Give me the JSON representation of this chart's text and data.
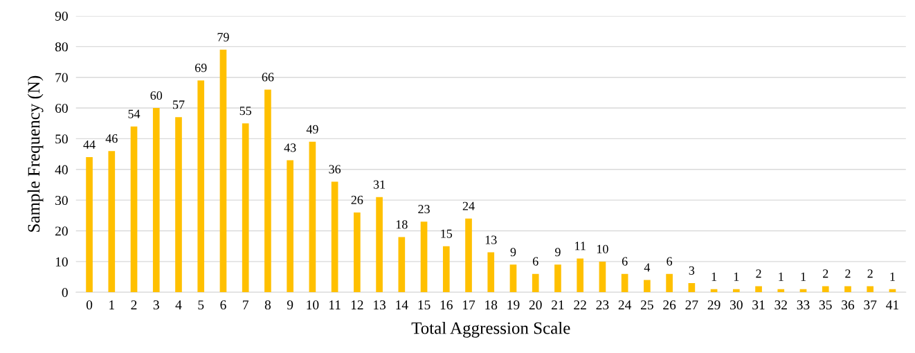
{
  "chart_data": {
    "type": "bar",
    "xlabel": "Total Aggression Scale",
    "ylabel": "Sample Frequency (N)",
    "categories": [
      "0",
      "1",
      "2",
      "3",
      "4",
      "5",
      "6",
      "7",
      "8",
      "9",
      "10",
      "11",
      "12",
      "13",
      "14",
      "15",
      "16",
      "17",
      "18",
      "19",
      "20",
      "21",
      "22",
      "23",
      "24",
      "25",
      "26",
      "27",
      "29",
      "30",
      "31",
      "32",
      "33",
      "35",
      "36",
      "37",
      "41"
    ],
    "values": [
      44,
      46,
      54,
      60,
      57,
      69,
      79,
      55,
      66,
      43,
      49,
      36,
      26,
      31,
      18,
      23,
      15,
      24,
      13,
      9,
      6,
      9,
      11,
      10,
      6,
      4,
      6,
      3,
      1,
      1,
      2,
      1,
      1,
      2,
      2,
      2,
      1
    ],
    "color": "#ffc000",
    "ylim": [
      0,
      90
    ],
    "yticks": [
      0,
      10,
      20,
      30,
      40,
      50,
      60,
      70,
      80,
      90
    ],
    "grid": "y",
    "data_labels": true
  }
}
